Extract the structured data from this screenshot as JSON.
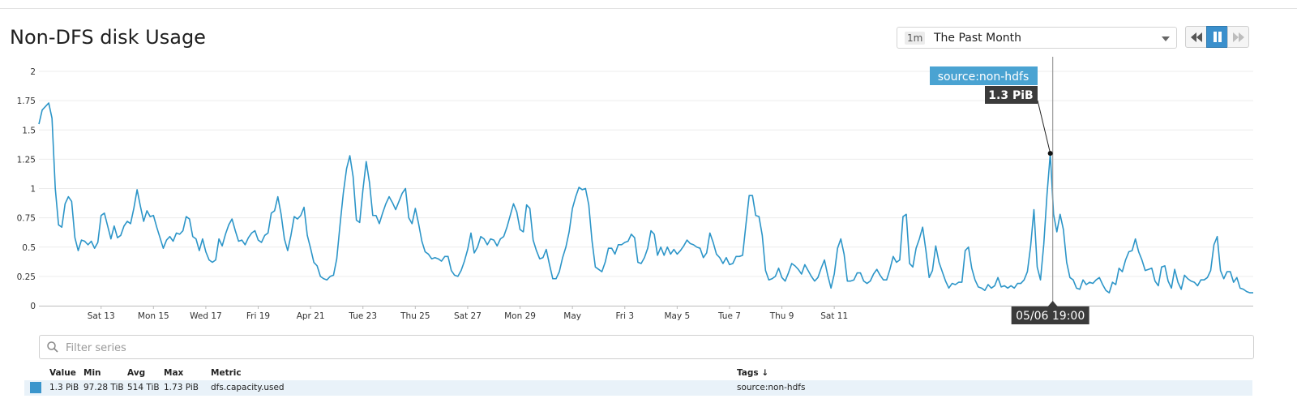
{
  "widget": {
    "title": "Non-DFS disk Usage"
  },
  "timeframe": {
    "short": "1m",
    "label": "The Past Month"
  },
  "playback": {
    "rewind_icon": "rewind-icon",
    "pause_icon": "pause-icon",
    "forward_icon": "fast-forward-icon"
  },
  "tooltip": {
    "series_label": "source:non-hdfs",
    "value": "1.3 PiB",
    "time_label": "05/06 19:00"
  },
  "filter": {
    "placeholder": "Filter series",
    "icon": "search-icon"
  },
  "legend": {
    "headers": {
      "value": "Value",
      "min": "Min",
      "avg": "Avg",
      "max": "Max",
      "metric": "Metric",
      "tags": "Tags ↓"
    },
    "rows": [
      {
        "value": "1.3 PiB",
        "min": "97.28 TiB",
        "avg": "514 TiB",
        "max": "1.73 PiB",
        "metric": "dfs.capacity.used",
        "tags": "source:non-hdfs",
        "color": "#3a95cc"
      }
    ]
  },
  "colors": {
    "series": "#2c95c8",
    "tooltip_label_bg": "#4aa3d2",
    "tooltip_value_bg": "#3b3b3b",
    "grid": "#ececec"
  },
  "chart_data": {
    "type": "line",
    "ylim": [
      0,
      2
    ],
    "yticks": [
      "0",
      "0.25",
      "0.5",
      "0.75",
      "1",
      "1.25",
      "1.5",
      "1.75",
      "2"
    ],
    "xticks": [
      "Sat 13",
      "Mon 15",
      "Wed 17",
      "Fri 19",
      "Apr 21",
      "Tue 23",
      "Thu 25",
      "Sat 27",
      "Mon 29",
      "May",
      "Fri 3",
      "May 5",
      "Tue 7",
      "Thu 9",
      "Sat 11"
    ],
    "grid": true,
    "series": [
      {
        "name": "source:non-hdfs",
        "step_hours": 3,
        "values": [
          1.55,
          1.67,
          1.7,
          1.73,
          1.6,
          1.0,
          0.69,
          0.67,
          0.87,
          0.93,
          0.89,
          0.58,
          0.47,
          0.56,
          0.55,
          0.52,
          0.55,
          0.49,
          0.54,
          0.77,
          0.79,
          0.68,
          0.57,
          0.68,
          0.58,
          0.6,
          0.68,
          0.72,
          0.7,
          0.83,
          0.99,
          0.85,
          0.72,
          0.81,
          0.76,
          0.77,
          0.67,
          0.58,
          0.49,
          0.56,
          0.59,
          0.55,
          0.62,
          0.61,
          0.64,
          0.76,
          0.74,
          0.59,
          0.57,
          0.47,
          0.57,
          0.46,
          0.39,
          0.37,
          0.39,
          0.57,
          0.51,
          0.61,
          0.69,
          0.74,
          0.64,
          0.55,
          0.56,
          0.52,
          0.58,
          0.62,
          0.64,
          0.56,
          0.54,
          0.6,
          0.62,
          0.79,
          0.81,
          0.93,
          0.78,
          0.57,
          0.47,
          0.6,
          0.76,
          0.74,
          0.77,
          0.84,
          0.6,
          0.49,
          0.37,
          0.34,
          0.25,
          0.23,
          0.22,
          0.25,
          0.26,
          0.4,
          0.69,
          0.96,
          1.17,
          1.28,
          1.1,
          0.73,
          0.71,
          0.99,
          1.23,
          1.05,
          0.77,
          0.77,
          0.7,
          0.79,
          0.87,
          0.93,
          0.88,
          0.82,
          0.89,
          0.96,
          1.0,
          0.75,
          0.7,
          0.83,
          0.7,
          0.55,
          0.46,
          0.44,
          0.4,
          0.41,
          0.4,
          0.38,
          0.42,
          0.42,
          0.3,
          0.26,
          0.25,
          0.3,
          0.38,
          0.48,
          0.62,
          0.45,
          0.5,
          0.59,
          0.57,
          0.52,
          0.57,
          0.56,
          0.51,
          0.57,
          0.59,
          0.67,
          0.77,
          0.87,
          0.8,
          0.65,
          0.63,
          0.86,
          0.83,
          0.56,
          0.47,
          0.4,
          0.41,
          0.48,
          0.35,
          0.23,
          0.23,
          0.29,
          0.41,
          0.5,
          0.63,
          0.83,
          0.93,
          1.01,
          0.99,
          1.0,
          0.86,
          0.55,
          0.33,
          0.31,
          0.29,
          0.37,
          0.49,
          0.49,
          0.44,
          0.52,
          0.52,
          0.54,
          0.55,
          0.61,
          0.58,
          0.37,
          0.36,
          0.41,
          0.49,
          0.64,
          0.61,
          0.43,
          0.5,
          0.43,
          0.5,
          0.44,
          0.48,
          0.44,
          0.47,
          0.51,
          0.56,
          0.53,
          0.52,
          0.5,
          0.49,
          0.41,
          0.45,
          0.62,
          0.54,
          0.44,
          0.41,
          0.36,
          0.41,
          0.35,
          0.36,
          0.42,
          0.42,
          0.43,
          0.69,
          0.94,
          0.94,
          0.77,
          0.76,
          0.6,
          0.3,
          0.22,
          0.23,
          0.25,
          0.32,
          0.24,
          0.21,
          0.28,
          0.36,
          0.34,
          0.31,
          0.27,
          0.35,
          0.3,
          0.25,
          0.21,
          0.24,
          0.32,
          0.39,
          0.26,
          0.15,
          0.27,
          0.49,
          0.57,
          0.44,
          0.21,
          0.21,
          0.22,
          0.28,
          0.28,
          0.21,
          0.19,
          0.21,
          0.27,
          0.31,
          0.26,
          0.22,
          0.22,
          0.31,
          0.42,
          0.37,
          0.39,
          0.76,
          0.78,
          0.36,
          0.33,
          0.49,
          0.57,
          0.67,
          0.47,
          0.24,
          0.3,
          0.51,
          0.37,
          0.29,
          0.21,
          0.15,
          0.19,
          0.18,
          0.2,
          0.2,
          0.47,
          0.5,
          0.32,
          0.22,
          0.16,
          0.15,
          0.13,
          0.18,
          0.15,
          0.17,
          0.24,
          0.16,
          0.17,
          0.15,
          0.17,
          0.15,
          0.19,
          0.19,
          0.22,
          0.29,
          0.51,
          0.82,
          0.33,
          0.22,
          0.52,
          0.95,
          1.3,
          0.78,
          0.63,
          0.78,
          0.65,
          0.37,
          0.24,
          0.22,
          0.15,
          0.14,
          0.22,
          0.18,
          0.2,
          0.19,
          0.22,
          0.24,
          0.18,
          0.13,
          0.11,
          0.2,
          0.18,
          0.32,
          0.29,
          0.39,
          0.46,
          0.47,
          0.57,
          0.46,
          0.39,
          0.3,
          0.31,
          0.32,
          0.21,
          0.17,
          0.33,
          0.34,
          0.21,
          0.15,
          0.31,
          0.2,
          0.14,
          0.26,
          0.23,
          0.21,
          0.2,
          0.17,
          0.22,
          0.22,
          0.24,
          0.3,
          0.52,
          0.59,
          0.3,
          0.23,
          0.29,
          0.29,
          0.2,
          0.24,
          0.15,
          0.14,
          0.12,
          0.11,
          0.11
        ]
      }
    ]
  }
}
